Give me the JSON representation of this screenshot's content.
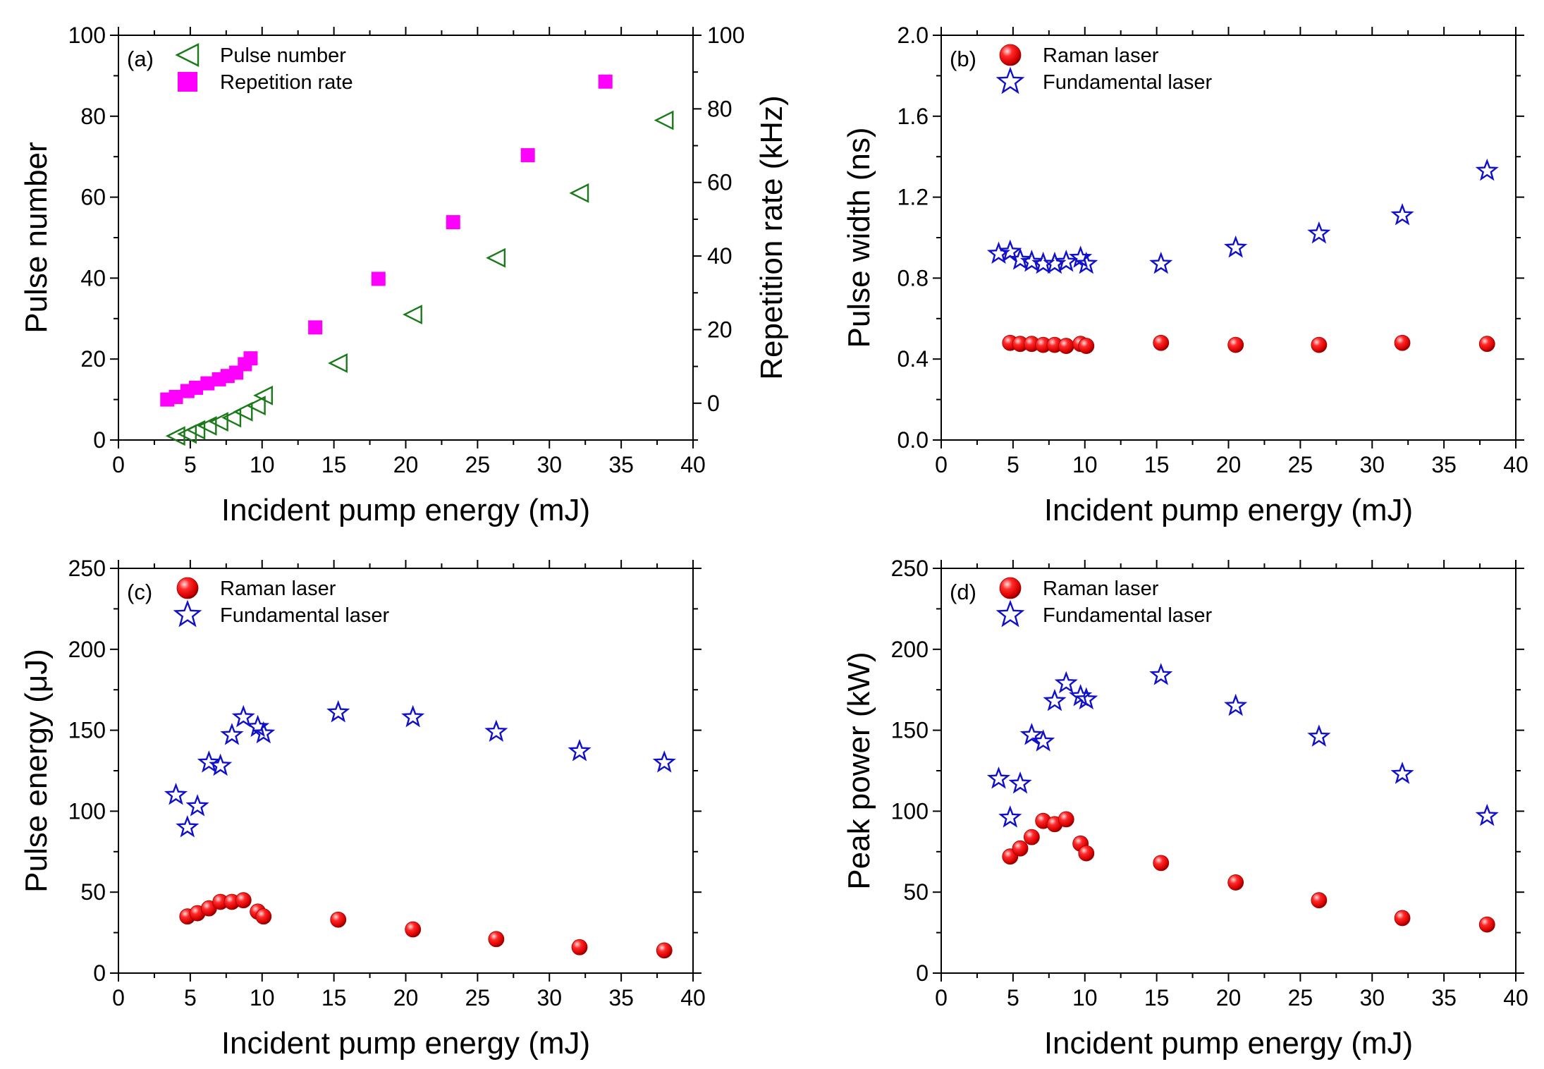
{
  "chart_data": [
    {
      "panel_label": "(a)",
      "type": "scatter",
      "xlabel": "Incident pump energy (mJ)",
      "ylabel": "Pulse number",
      "ylabel_right": "Repetition rate (kHz)",
      "xlim": [
        0,
        40
      ],
      "ylim": [
        0,
        100
      ],
      "ylim_right": [
        -10,
        100
      ],
      "xticks": [
        "0",
        "5",
        "10",
        "15",
        "20",
        "25",
        "30",
        "35",
        "40"
      ],
      "yticks": [
        "0",
        "20",
        "40",
        "60",
        "80",
        "100"
      ],
      "yticks_right": [
        "0",
        "20",
        "40",
        "60",
        "80",
        "100"
      ],
      "grid": false,
      "legend_position": "top-left",
      "series": [
        {
          "name": "Pulse number",
          "axis": "left",
          "marker": "triangle-left-open",
          "color": "#1a7a1a",
          "points": [
            [
              4.0,
              1
            ],
            [
              4.8,
              1.5
            ],
            [
              5.4,
              2.5
            ],
            [
              6.2,
              3.5
            ],
            [
              7.0,
              4.5
            ],
            [
              7.9,
              5.5
            ],
            [
              8.7,
              7
            ],
            [
              9.6,
              8.5
            ],
            [
              10.1,
              11
            ],
            [
              15.3,
              19
            ],
            [
              20.5,
              31
            ],
            [
              26.3,
              45
            ],
            [
              32.1,
              61
            ],
            [
              38.0,
              79
            ]
          ]
        },
        {
          "name": "Repetition rate",
          "axis": "right",
          "marker": "square-filled",
          "color": "#ff00ff",
          "points": [
            [
              3.4,
              1
            ],
            [
              4.0,
              1.7
            ],
            [
              4.8,
              3.3
            ],
            [
              5.4,
              4.2
            ],
            [
              6.2,
              5.4
            ],
            [
              7.0,
              6.5
            ],
            [
              7.6,
              7.4
            ],
            [
              8.2,
              8.3
            ],
            [
              8.8,
              10.6
            ],
            [
              9.2,
              12.2
            ],
            [
              13.7,
              20.6
            ],
            [
              18.1,
              33.8
            ],
            [
              23.3,
              49.2
            ],
            [
              28.5,
              67.4
            ],
            [
              33.9,
              87.4
            ]
          ]
        }
      ]
    },
    {
      "panel_label": "(b)",
      "type": "scatter",
      "xlabel": "Incident pump energy (mJ)",
      "ylabel": "Pulse width (ns)",
      "xlim": [
        0,
        40
      ],
      "ylim": [
        0,
        2.0
      ],
      "xticks": [
        "0",
        "5",
        "10",
        "15",
        "20",
        "25",
        "30",
        "35",
        "40"
      ],
      "yticks": [
        "0.0",
        "0.4",
        "0.8",
        "1.2",
        "1.6",
        "2.0"
      ],
      "grid": false,
      "legend_position": "top-left",
      "series": [
        {
          "name": "Raman laser",
          "marker": "sphere-filled",
          "color": "#e01010",
          "points": [
            [
              4.8,
              0.48
            ],
            [
              5.5,
              0.475
            ],
            [
              6.3,
              0.475
            ],
            [
              7.1,
              0.47
            ],
            [
              7.9,
              0.47
            ],
            [
              8.7,
              0.465
            ],
            [
              9.7,
              0.475
            ],
            [
              10.1,
              0.465
            ],
            [
              15.3,
              0.48
            ],
            [
              20.5,
              0.47
            ],
            [
              26.3,
              0.47
            ],
            [
              32.1,
              0.48
            ],
            [
              38.0,
              0.475
            ]
          ]
        },
        {
          "name": "Fundamental laser",
          "marker": "star-open",
          "color": "#1010cc",
          "points": [
            [
              4.0,
              0.92
            ],
            [
              4.8,
              0.93
            ],
            [
              5.5,
              0.89
            ],
            [
              6.3,
              0.88
            ],
            [
              7.1,
              0.87
            ],
            [
              7.9,
              0.87
            ],
            [
              8.7,
              0.88
            ],
            [
              9.7,
              0.9
            ],
            [
              10.1,
              0.87
            ],
            [
              15.3,
              0.87
            ],
            [
              20.5,
              0.95
            ],
            [
              26.3,
              1.02
            ],
            [
              32.1,
              1.11
            ],
            [
              38.0,
              1.33
            ]
          ]
        }
      ]
    },
    {
      "panel_label": "(c)",
      "type": "scatter",
      "xlabel": "Incident pump energy (mJ)",
      "ylabel": "Pulse energy (μJ)",
      "xlim": [
        0,
        40
      ],
      "ylim": [
        0,
        250
      ],
      "xticks": [
        "0",
        "5",
        "10",
        "15",
        "20",
        "25",
        "30",
        "35",
        "40"
      ],
      "yticks": [
        "0",
        "50",
        "100",
        "150",
        "200",
        "250"
      ],
      "grid": false,
      "legend_position": "top-left",
      "series": [
        {
          "name": "Raman laser",
          "marker": "sphere-filled",
          "color": "#e01010",
          "points": [
            [
              4.8,
              35
            ],
            [
              5.5,
              37
            ],
            [
              6.3,
              40
            ],
            [
              7.1,
              44
            ],
            [
              7.9,
              44
            ],
            [
              8.7,
              45
            ],
            [
              9.7,
              38
            ],
            [
              10.1,
              35
            ],
            [
              15.3,
              33
            ],
            [
              20.5,
              27
            ],
            [
              26.3,
              21
            ],
            [
              32.1,
              16
            ],
            [
              38.0,
              14
            ]
          ]
        },
        {
          "name": "Fundamental laser",
          "marker": "star-open",
          "color": "#1010cc",
          "points": [
            [
              4.0,
              110
            ],
            [
              4.8,
              90
            ],
            [
              5.5,
              103
            ],
            [
              6.3,
              130
            ],
            [
              7.1,
              128
            ],
            [
              7.9,
              147
            ],
            [
              8.7,
              158
            ],
            [
              9.7,
              152
            ],
            [
              10.1,
              148
            ],
            [
              15.3,
              161
            ],
            [
              20.5,
              158
            ],
            [
              26.3,
              149
            ],
            [
              32.1,
              137
            ],
            [
              38.0,
              130
            ]
          ]
        }
      ]
    },
    {
      "panel_label": "(d)",
      "type": "scatter",
      "xlabel": "Incident pump energy (mJ)",
      "ylabel": "Peak power (kW)",
      "xlim": [
        0,
        40
      ],
      "ylim": [
        0,
        250
      ],
      "xticks": [
        "0",
        "5",
        "10",
        "15",
        "20",
        "25",
        "30",
        "35",
        "40"
      ],
      "yticks": [
        "0",
        "50",
        "100",
        "150",
        "200",
        "250"
      ],
      "grid": false,
      "legend_position": "top-left",
      "series": [
        {
          "name": "Raman laser",
          "marker": "sphere-filled",
          "color": "#e01010",
          "points": [
            [
              4.8,
              72
            ],
            [
              5.5,
              77
            ],
            [
              6.3,
              84
            ],
            [
              7.1,
              94
            ],
            [
              7.9,
              92
            ],
            [
              8.7,
              95
            ],
            [
              9.7,
              80
            ],
            [
              10.1,
              74
            ],
            [
              15.3,
              68
            ],
            [
              20.5,
              56
            ],
            [
              26.3,
              45
            ],
            [
              32.1,
              34
            ],
            [
              38.0,
              30
            ]
          ]
        },
        {
          "name": "Fundamental laser",
          "marker": "star-open",
          "color": "#1010cc",
          "points": [
            [
              4.0,
              120
            ],
            [
              4.8,
              96
            ],
            [
              5.5,
              117
            ],
            [
              6.3,
              147
            ],
            [
              7.1,
              143
            ],
            [
              7.9,
              168
            ],
            [
              8.7,
              179
            ],
            [
              9.7,
              171
            ],
            [
              10.1,
              169
            ],
            [
              15.3,
              184
            ],
            [
              20.5,
              165
            ],
            [
              26.3,
              146
            ],
            [
              32.1,
              123
            ],
            [
              38.0,
              97
            ]
          ]
        }
      ]
    }
  ]
}
